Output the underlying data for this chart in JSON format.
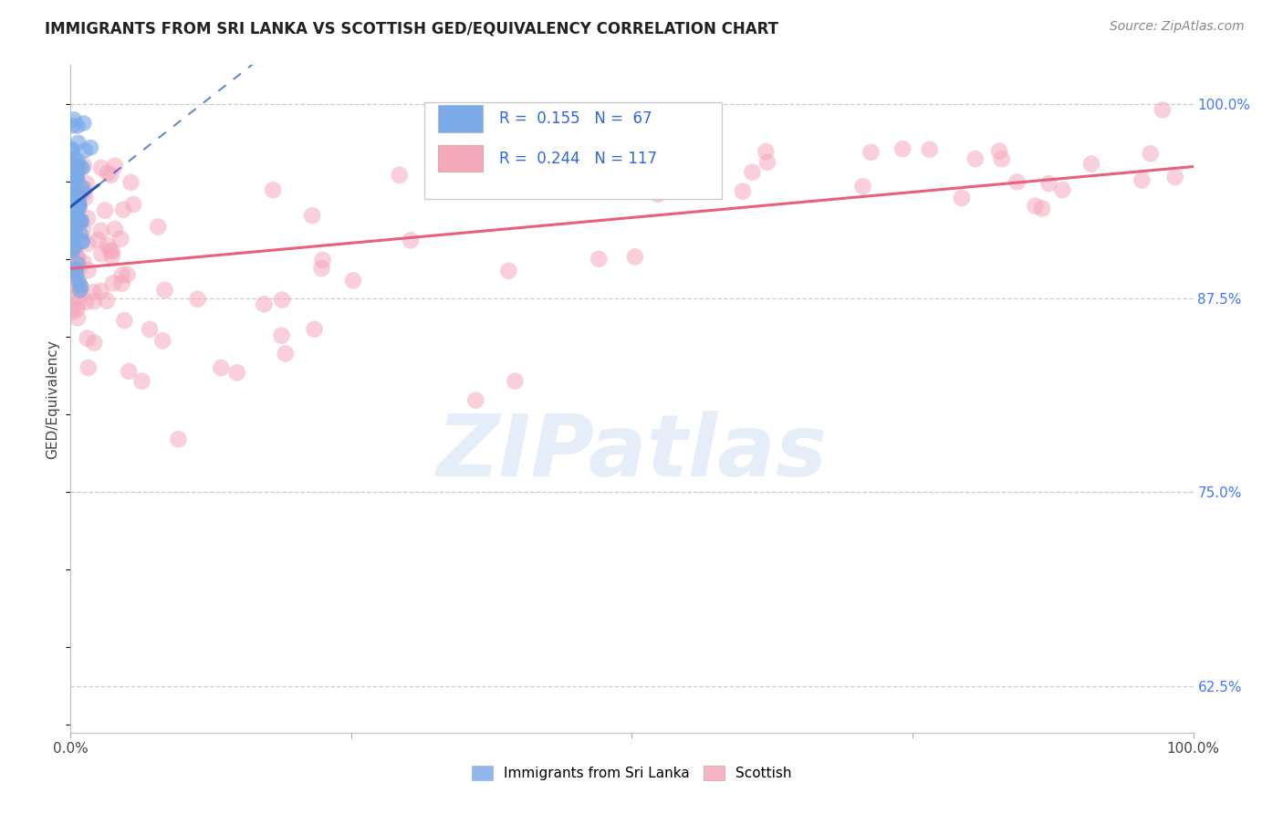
{
  "title": "IMMIGRANTS FROM SRI LANKA VS SCOTTISH GED/EQUIVALENCY CORRELATION CHART",
  "source": "Source: ZipAtlas.com",
  "ylabel": "GED/Equivalency",
  "yticks": [
    0.625,
    0.75,
    0.875,
    1.0
  ],
  "ytick_labels": [
    "62.5%",
    "75.0%",
    "87.5%",
    "100.0%"
  ],
  "xlim": [
    0.0,
    1.0
  ],
  "ylim": [
    0.595,
    1.025
  ],
  "blue_R": 0.155,
  "blue_N": 67,
  "pink_R": 0.244,
  "pink_N": 117,
  "blue_color": "#7baae8",
  "pink_color": "#f4a8bc",
  "blue_line_color": "#2255bb",
  "pink_line_color": "#e8607a",
  "legend_label_blue": "Immigrants from Sri Lanka",
  "legend_label_pink": "Scottish",
  "watermark_text": "ZIPatlas",
  "seed": 12345
}
